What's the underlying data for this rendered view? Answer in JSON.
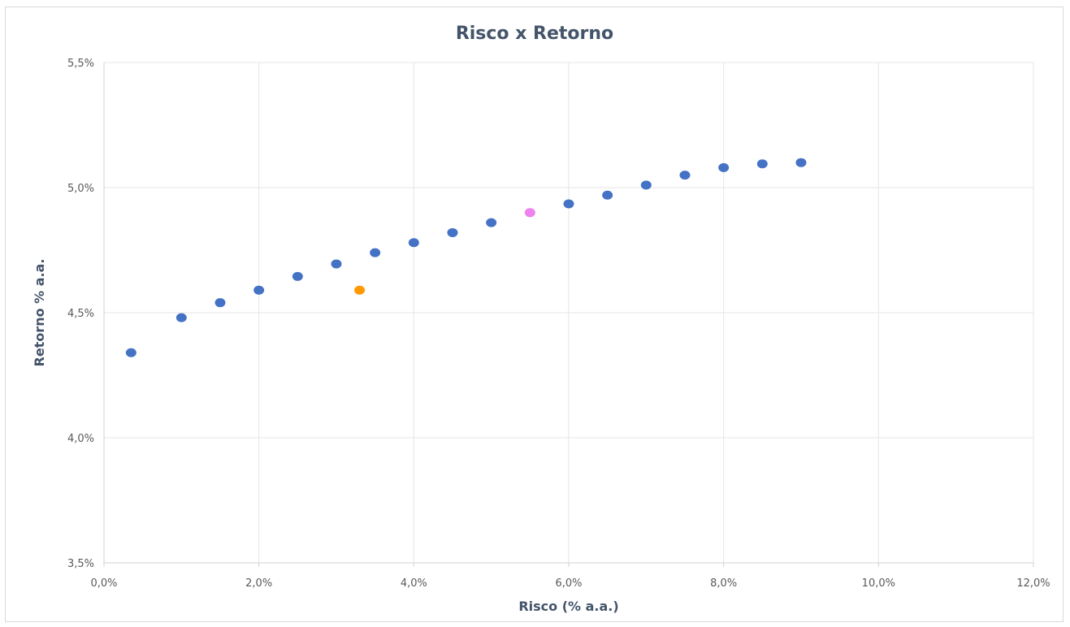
{
  "chart_data": {
    "type": "scatter",
    "title": "Risco x Retorno",
    "xlabel": "Risco (% a.a.)",
    "ylabel": "Retorno % a.a.",
    "xlim": [
      0,
      12
    ],
    "ylim": [
      3.5,
      5.5
    ],
    "x_ticks": [
      0,
      2,
      4,
      6,
      8,
      10,
      12
    ],
    "y_ticks": [
      3.5,
      4.0,
      4.5,
      5.0,
      5.5
    ],
    "x_tick_labels": [
      "0,0%",
      "2,0%",
      "4,0%",
      "6,0%",
      "8,0%",
      "10,0%",
      "12,0%"
    ],
    "y_tick_labels": [
      "3,5%",
      "4,0%",
      "4,5%",
      "5,0%",
      "5,5%"
    ],
    "grid": true,
    "legend": "none",
    "series": [
      {
        "color": "#4472c4",
        "points": [
          {
            "x": 0.35,
            "y": 4.34
          },
          {
            "x": 1.0,
            "y": 4.48
          },
          {
            "x": 1.5,
            "y": 4.54
          },
          {
            "x": 2.0,
            "y": 4.59
          },
          {
            "x": 2.5,
            "y": 4.645
          },
          {
            "x": 3.0,
            "y": 4.695
          },
          {
            "x": 3.5,
            "y": 4.74
          },
          {
            "x": 4.0,
            "y": 4.78
          },
          {
            "x": 4.5,
            "y": 4.82
          },
          {
            "x": 5.0,
            "y": 4.86
          },
          {
            "x": 6.0,
            "y": 4.935
          },
          {
            "x": 6.5,
            "y": 4.97
          },
          {
            "x": 7.0,
            "y": 5.01
          },
          {
            "x": 7.5,
            "y": 5.05
          },
          {
            "x": 8.0,
            "y": 5.08
          },
          {
            "x": 8.5,
            "y": 5.095
          },
          {
            "x": 9.0,
            "y": 5.1
          }
        ]
      },
      {
        "color": "#ff9900",
        "points": [
          {
            "x": 3.3,
            "y": 4.59
          }
        ]
      },
      {
        "color": "#ee82ee",
        "points": [
          {
            "x": 5.5,
            "y": 4.9
          }
        ]
      }
    ]
  }
}
